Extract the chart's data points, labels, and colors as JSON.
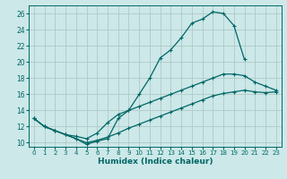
{
  "title": "",
  "xlabel": "Humidex (Indice chaleur)",
  "bg_color": "#cce8e8",
  "grid_color": "#b0c8c8",
  "line_color": "#006666",
  "xlim": [
    -0.5,
    23.5
  ],
  "ylim": [
    9.5,
    27
  ],
  "xticks": [
    0,
    1,
    2,
    3,
    4,
    5,
    6,
    7,
    8,
    9,
    10,
    11,
    12,
    13,
    14,
    15,
    16,
    17,
    18,
    19,
    20,
    21,
    22,
    23
  ],
  "yticks": [
    10,
    12,
    14,
    16,
    18,
    20,
    22,
    24,
    26
  ],
  "line1_x": [
    0,
    1,
    2,
    3,
    4,
    5,
    6,
    7,
    8,
    9,
    10,
    11,
    12,
    13,
    14,
    15,
    16,
    17,
    18,
    19,
    20,
    21,
    22,
    23
  ],
  "line1_y": [
    13,
    12,
    11.5,
    11,
    10.5,
    9.8,
    10.2,
    10.5,
    13,
    14,
    16,
    18,
    20.5,
    21.5,
    23,
    24.8,
    25.3,
    26.2,
    26,
    24.5,
    20.3,
    null,
    null,
    null
  ],
  "line2_x": [
    0,
    1,
    2,
    3,
    4,
    5,
    6,
    7,
    8,
    9,
    10,
    11,
    12,
    13,
    14,
    15,
    16,
    17,
    18,
    19,
    20,
    21,
    22,
    23
  ],
  "line2_y": [
    13,
    12,
    11.5,
    11,
    10.8,
    10.5,
    11.2,
    12.5,
    13.5,
    14,
    14.5,
    15,
    15.5,
    16,
    16.5,
    17,
    17.5,
    18,
    18.5,
    18.5,
    18.3,
    17.5,
    17,
    16.5
  ],
  "line3_x": [
    0,
    1,
    2,
    3,
    4,
    5,
    6,
    7,
    8,
    9,
    10,
    11,
    12,
    13,
    14,
    15,
    16,
    17,
    18,
    19,
    20,
    21,
    22,
    23
  ],
  "line3_y": [
    13,
    12,
    11.5,
    11,
    10.5,
    10,
    10.3,
    10.7,
    11.2,
    11.8,
    12.3,
    12.8,
    13.3,
    13.8,
    14.3,
    14.8,
    15.3,
    15.8,
    16.1,
    16.3,
    16.5,
    16.3,
    16.2,
    16.3
  ]
}
